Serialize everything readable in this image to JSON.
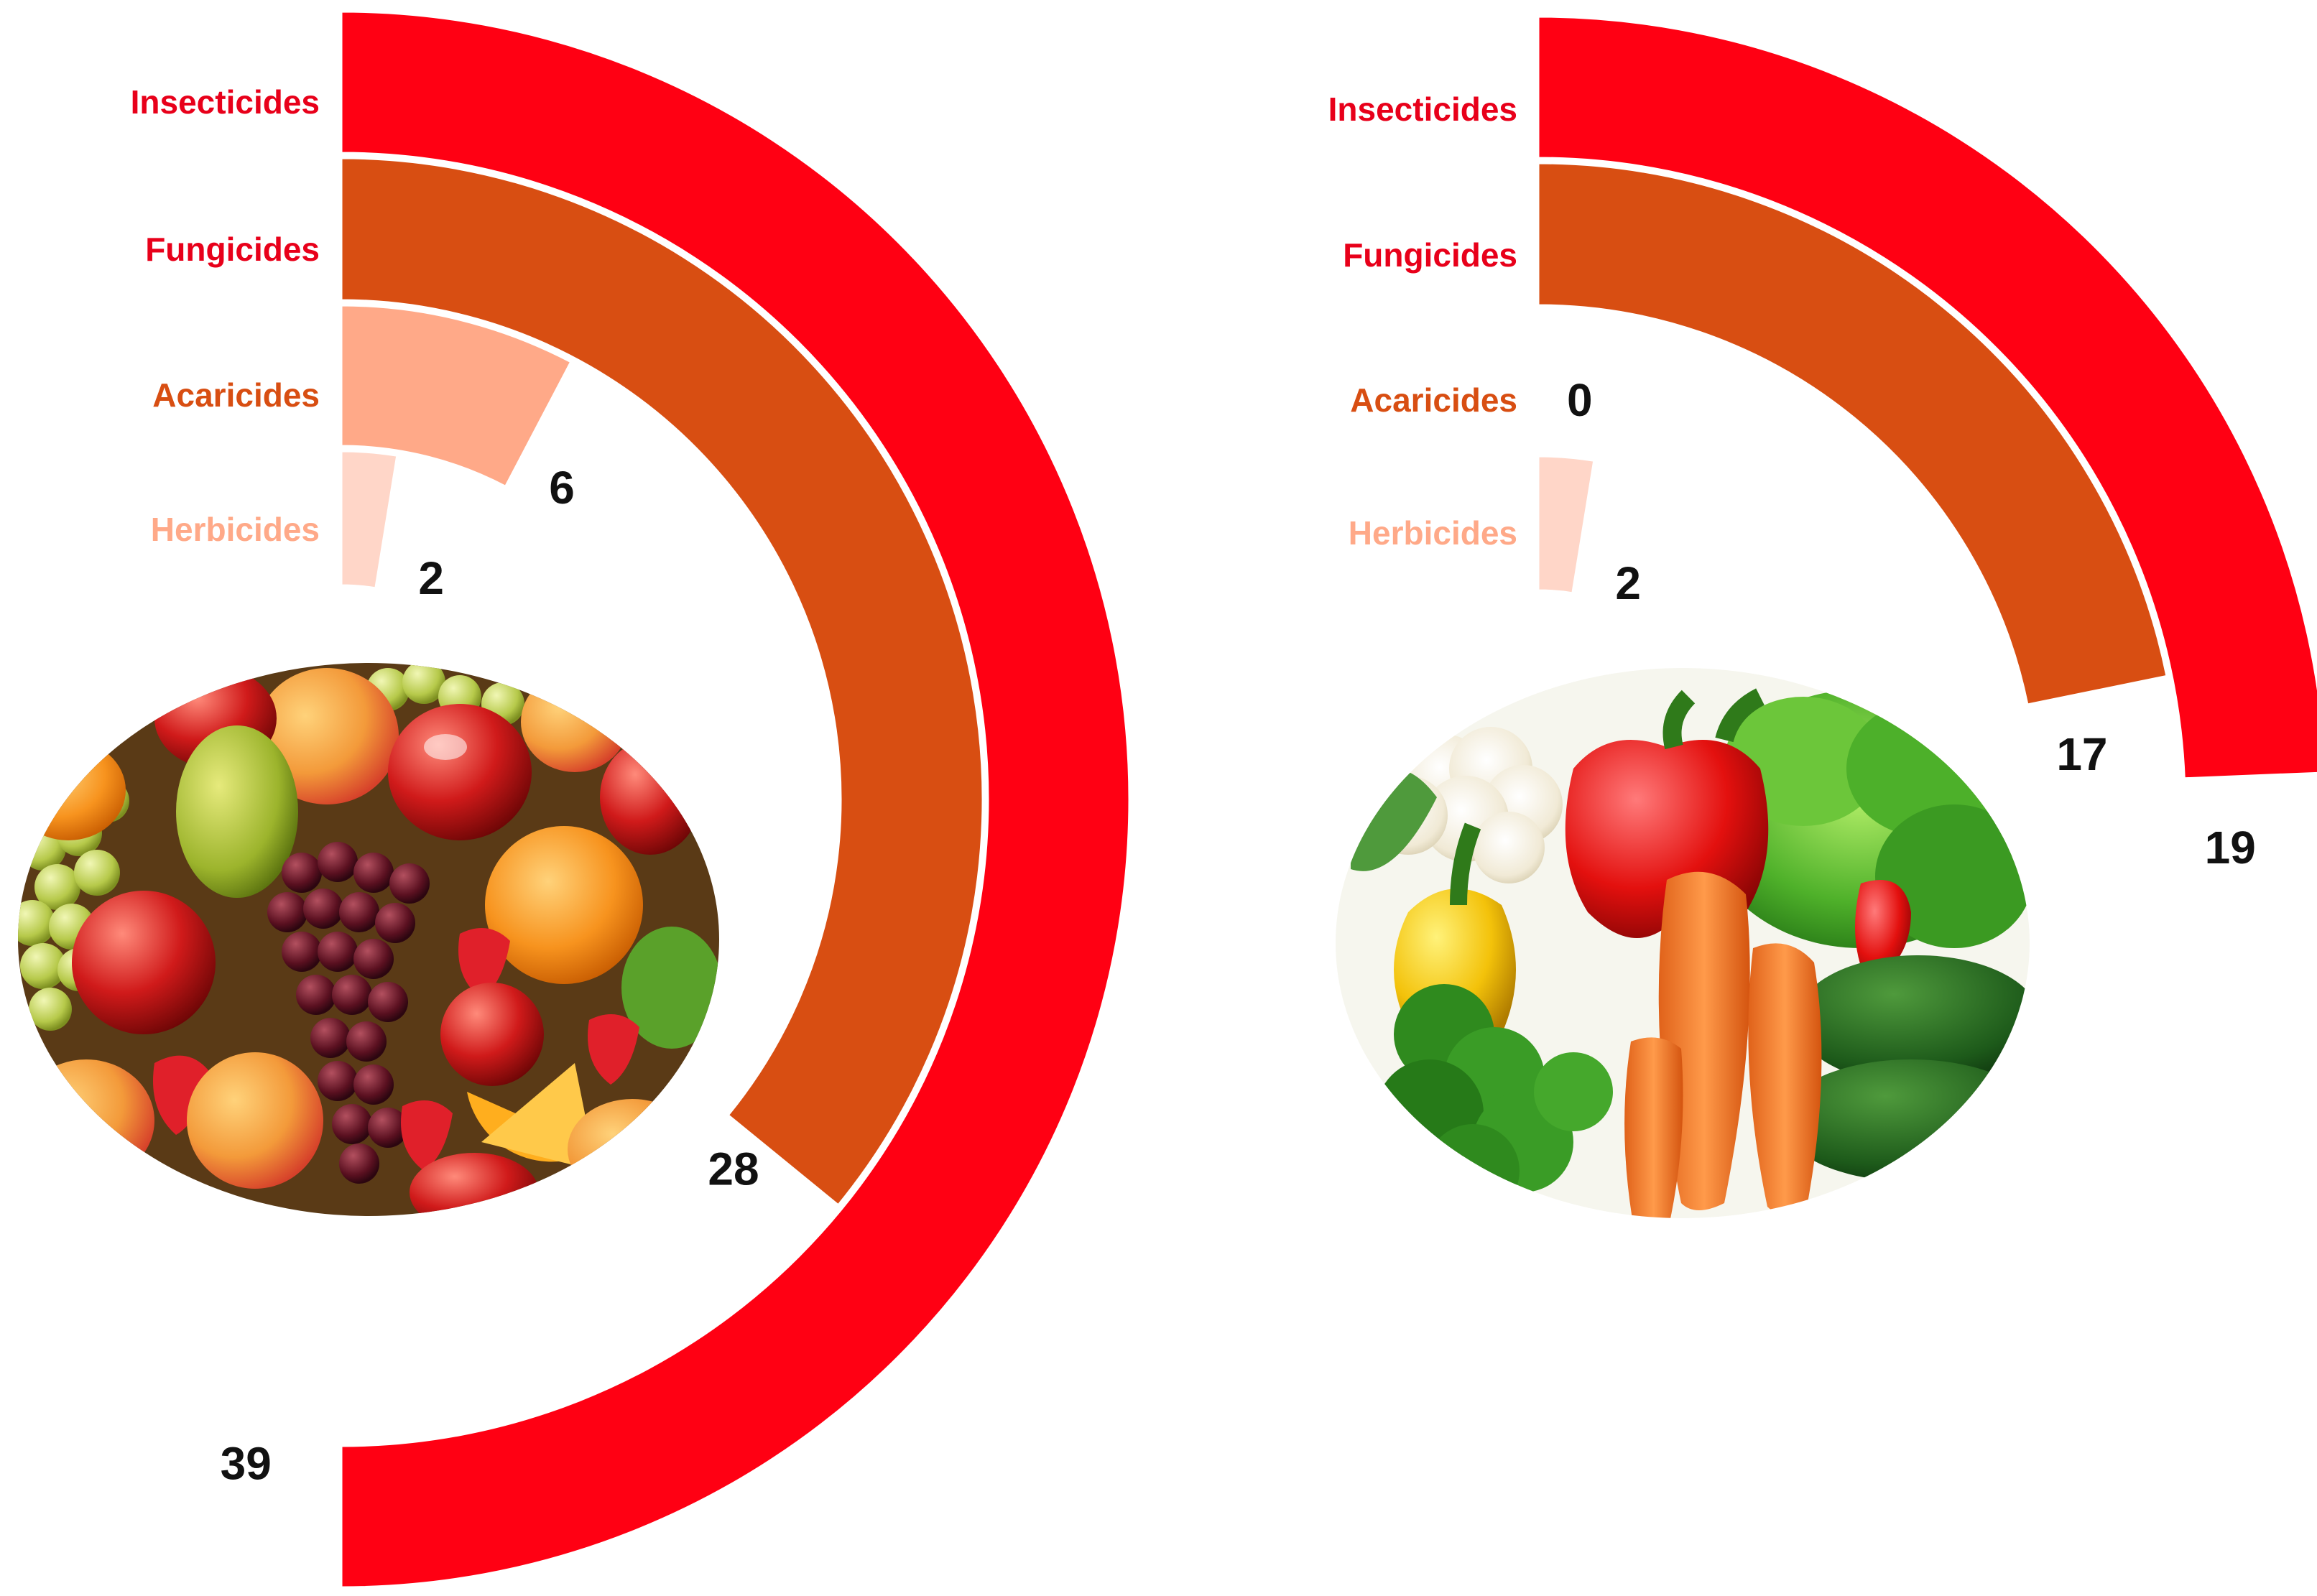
{
  "chart_data": [
    {
      "type": "radial-bar",
      "categories": [
        "Insecticides",
        "Fungicides",
        "Acaricides",
        "Herbicides"
      ],
      "values": [
        39,
        28,
        6,
        2
      ],
      "value_labels": [
        "39",
        "28",
        "6",
        "2"
      ],
      "scale_max": 39,
      "colors": [
        "#ff0013",
        "#d84e12",
        "#ffa988",
        "#ffd6c8"
      ],
      "label_colors": [
        "#e8001a",
        "#e8001a",
        "#d84e12",
        "#ffa988"
      ],
      "picture": "fruit-assortment"
    },
    {
      "type": "radial-bar",
      "categories": [
        "Insecticides",
        "Fungicides",
        "Acaricides",
        "Herbicides"
      ],
      "values": [
        19,
        17,
        0,
        2
      ],
      "value_labels": [
        "19",
        "17",
        "0",
        "2"
      ],
      "scale_max": 39,
      "colors": [
        "#ff0013",
        "#d84e12",
        "#ffa988",
        "#ffd6c8"
      ],
      "label_colors": [
        "#e8001a",
        "#e8001a",
        "#d84e12",
        "#ffa988"
      ],
      "picture": "vegetable-assortment"
    }
  ]
}
